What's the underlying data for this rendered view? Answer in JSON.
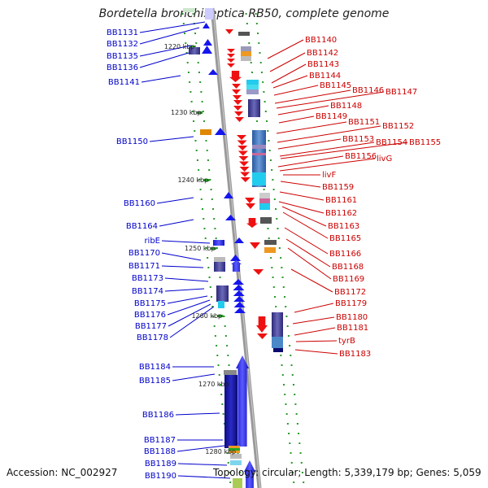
{
  "title": "Bordetella bronchiseptica RB50, complete genome",
  "footer": {
    "accession": "Accession: NC_002927",
    "summary": "Topology: circular; Length: 5,339,179 bp; Genes: 5,059"
  },
  "colors": {
    "left_label": "#0000cc",
    "right_label": "#cc0000",
    "axis": "#999999",
    "tick": "#2a9a2a"
  },
  "scale_markers": [
    "1220 kbp",
    "1230 kbp",
    "1240 kbp",
    "1250 kbp",
    "1260 kbp",
    "1270 kbp",
    "1280 kbp"
  ],
  "left_genes": [
    "BB1131",
    "BB1132",
    "BB1135",
    "BB1136",
    "BB1141",
    "BB1150",
    "BB1160",
    "BB1164",
    "ribE",
    "BB1170",
    "BB1171",
    "BB1173",
    "BB1174",
    "BB1175",
    "BB1176",
    "BB1177",
    "BB1178",
    "BB1184",
    "BB1185",
    "BB1186",
    "BB1187",
    "BB1188",
    "BB1189",
    "BB1190"
  ],
  "right_genes": [
    "BB1140",
    "BB1142",
    "BB1143",
    "BB1144",
    "BB1145",
    "BB1146",
    "BB1147",
    "BB1148",
    "BB1149",
    "BB1151",
    "BB1152",
    "BB1153",
    "BB1154",
    "BB1155",
    "BB1156",
    "livG",
    "livF",
    "BB1159",
    "BB1161",
    "BB1162",
    "BB1163",
    "BB1165",
    "BB1166",
    "BB1168",
    "BB1169",
    "BB1172",
    "BB1179",
    "BB1180",
    "BB1181",
    "tyrB",
    "BB1183"
  ]
}
